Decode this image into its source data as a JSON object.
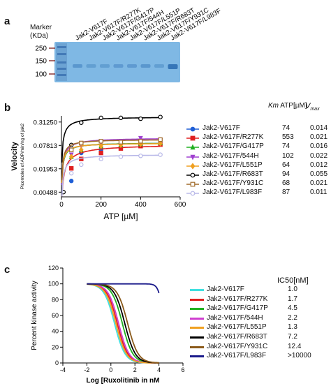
{
  "panels": {
    "a": {
      "letter": "a",
      "marker_label_line1": "Marker",
      "marker_label_line2": "(KDa)",
      "marker_ticks": [
        "250",
        "150",
        "100"
      ],
      "lanes": [
        "Jak2-V617F",
        "Jak2-V617F/R277K",
        "Jak2-V617F/G417P",
        "Jak2-V617F/544H",
        "Jak2-V617F/L551P",
        "Jak2-V617F/R683T",
        "Jak2-V617F/Y931C",
        "Jak2-V617F/L983F"
      ],
      "colors": {
        "gel": "#7fb8e4",
        "band": "#2f6fb3"
      }
    },
    "b": {
      "letter": "b",
      "table_headers": {
        "km": "Km",
        "km_sub": "m",
        "km_unit": "ATP[µM]",
        "vmax": "V",
        "vmax_sub": "max"
      }
    },
    "c": {
      "letter": "c",
      "ic50_header": "IC50[nM]"
    }
  },
  "chart_data": [
    {
      "id": "b",
      "type": "line",
      "title": "",
      "xlabel": "ATP [µM]",
      "ylabel": "Velocity",
      "ylabel_sub": "Picomoles of ADP/min/ng of jak2",
      "x_ticks": [
        "0",
        "200",
        "400",
        "600"
      ],
      "xlim": [
        0,
        600
      ],
      "y_scale": "log2",
      "y_ticks": [
        "0.00488",
        "0.01953",
        "0.07813",
        "0.31250"
      ],
      "y_tick_values": [
        0.00488,
        0.01953,
        0.07813,
        0.3125
      ],
      "legend_position": "right",
      "series": [
        {
          "name": "Jak2-V617F",
          "km": "74",
          "vmax": "0.014",
          "color": "#1f5fd6",
          "marker": "circle-filled",
          "points": [
            {
              "x": 50,
              "y": 0.0095
            },
            {
              "x": 100,
              "y": 0.05
            },
            {
              "x": 200,
              "y": 0.06
            },
            {
              "x": 300,
              "y": 0.07
            },
            {
              "x": 400,
              "y": 0.08
            },
            {
              "x": 500,
              "y": 0.09
            }
          ]
        },
        {
          "name": "Jak2-V617F/R277K",
          "km": "553",
          "vmax": "0.021",
          "color": "#e02020",
          "marker": "square-filled",
          "points": [
            {
              "x": 50,
              "y": 0.02
            },
            {
              "x": 100,
              "y": 0.035
            },
            {
              "x": 200,
              "y": 0.05
            },
            {
              "x": 300,
              "y": 0.065
            },
            {
              "x": 400,
              "y": 0.075
            },
            {
              "x": 500,
              "y": 0.082
            }
          ]
        },
        {
          "name": "Jak2-V617F/G417P",
          "km": "74",
          "vmax": "0.016",
          "color": "#20b020",
          "marker": "triangle-up-filled",
          "points": [
            {
              "x": 50,
              "y": 0.04
            },
            {
              "x": 100,
              "y": 0.06
            },
            {
              "x": 200,
              "y": 0.075
            },
            {
              "x": 300,
              "y": 0.08
            },
            {
              "x": 400,
              "y": 0.085
            },
            {
              "x": 500,
              "y": 0.09
            }
          ]
        },
        {
          "name": "Jak2-V617F/544H",
          "km": "102",
          "vmax": "0.022",
          "color": "#a040d0",
          "marker": "triangle-down-filled",
          "points": [
            {
              "x": 50,
              "y": 0.045
            },
            {
              "x": 100,
              "y": 0.075
            },
            {
              "x": 200,
              "y": 0.09
            },
            {
              "x": 300,
              "y": 0.095
            },
            {
              "x": 400,
              "y": 0.12
            },
            {
              "x": 500,
              "y": 0.105
            }
          ]
        },
        {
          "name": "Jak2-V617F/L551P",
          "km": "64",
          "vmax": "0.012",
          "color": "#f0a020",
          "marker": "diamond-filled",
          "points": [
            {
              "x": 50,
              "y": 0.04
            },
            {
              "x": 100,
              "y": 0.06
            },
            {
              "x": 200,
              "y": 0.075
            },
            {
              "x": 300,
              "y": 0.08
            },
            {
              "x": 400,
              "y": 0.085
            },
            {
              "x": 500,
              "y": 0.088
            }
          ]
        },
        {
          "name": "Jak2-V617F/R683T",
          "km": "94",
          "vmax": "0.055",
          "color": "#000000",
          "marker": "circle-open",
          "points": [
            {
              "x": 10,
              "y": 0.0049
            },
            {
              "x": 50,
              "y": 0.08
            },
            {
              "x": 100,
              "y": 0.3
            },
            {
              "x": 200,
              "y": 0.4
            },
            {
              "x": 300,
              "y": 0.4
            },
            {
              "x": 400,
              "y": 0.38
            },
            {
              "x": 500,
              "y": 0.42
            }
          ]
        },
        {
          "name": "Jak2-V617F/Y931C",
          "km": "68",
          "vmax": "0.021",
          "color": "#a06a2a",
          "marker": "square-open",
          "points": [
            {
              "x": 50,
              "y": 0.06
            },
            {
              "x": 100,
              "y": 0.09
            },
            {
              "x": 200,
              "y": 0.1
            },
            {
              "x": 300,
              "y": 0.095
            },
            {
              "x": 400,
              "y": 0.1
            },
            {
              "x": 500,
              "y": 0.11
            }
          ]
        },
        {
          "name": "Jak2-V617F/L983F",
          "km": "87",
          "vmax": "0.011",
          "color": "#b8b8e8",
          "marker": "circle-open",
          "points": [
            {
              "x": 50,
              "y": 0.015
            },
            {
              "x": 100,
              "y": 0.025
            },
            {
              "x": 200,
              "y": 0.035
            },
            {
              "x": 300,
              "y": 0.04
            },
            {
              "x": 400,
              "y": 0.042
            },
            {
              "x": 500,
              "y": 0.045
            }
          ]
        }
      ]
    },
    {
      "id": "c",
      "type": "line",
      "title": "",
      "xlabel": "Log [Ruxolitinib in nM",
      "ylabel": "Percent kinase activity",
      "x_ticks": [
        "-4",
        "-2",
        "0",
        "2",
        "4",
        "6"
      ],
      "xlim": [
        -4,
        6
      ],
      "y_ticks": [
        "0",
        "20",
        "40",
        "60",
        "80",
        "100",
        "120"
      ],
      "ylim": [
        0,
        120
      ],
      "legend_position": "right",
      "series": [
        {
          "name": "Jak2-V617F",
          "ic50": "1.0",
          "color": "#40e0e0"
        },
        {
          "name": "Jak2-V617F/R277K",
          "ic50": "1.7",
          "color": "#e02020"
        },
        {
          "name": "Jak2-V617F/G417P",
          "ic50": "4.5",
          "color": "#20b020"
        },
        {
          "name": "Jak2-V617F/544H",
          "ic50": "2.2",
          "color": "#d040d0"
        },
        {
          "name": "Jak2-V617F/L551P",
          "ic50": "1.3",
          "color": "#f0a020"
        },
        {
          "name": "Jak2-V617F/R683T",
          "ic50": "7.2",
          "color": "#000000"
        },
        {
          "name": "Jak2-V617F/Y931C",
          "ic50": "12.4",
          "color": "#8b5a1a"
        },
        {
          "name": "Jak2-V617F/L983F",
          "ic50": ">10000",
          "color": "#1a1a8a"
        }
      ]
    }
  ]
}
